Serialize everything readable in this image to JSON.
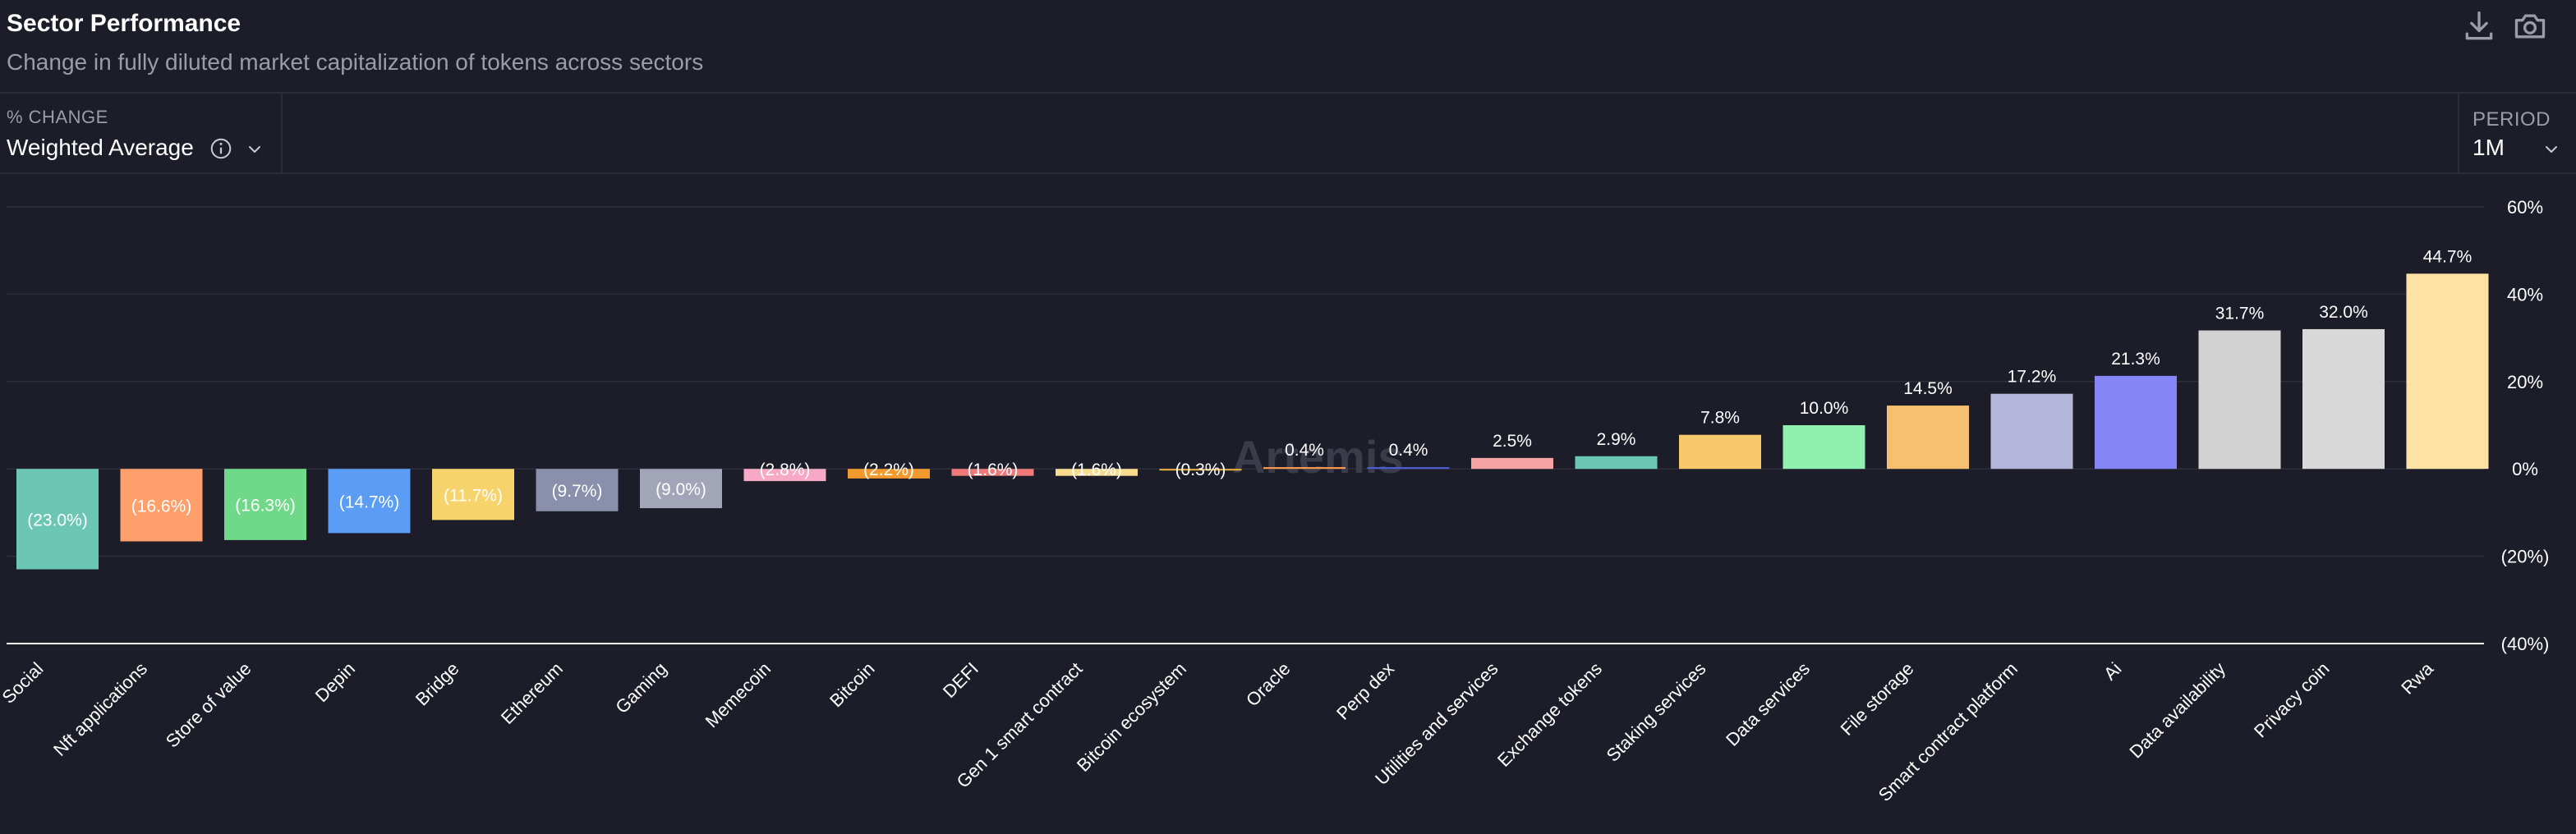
{
  "header": {
    "title": "Sector Performance",
    "subtitle": "Change in fully diluted market capitalization of tokens across sectors"
  },
  "controls": {
    "change_label": "% CHANGE",
    "change_value": "Weighted Average",
    "period_label": "PERIOD",
    "period_value": "1M"
  },
  "toolbar": {
    "download_icon": "download-icon",
    "screenshot_icon": "camera-icon"
  },
  "watermark": "Artemis",
  "chart_data": {
    "type": "bar",
    "categories": [
      "Social",
      "Nft applications",
      "Store of value",
      "Depin",
      "Bridge",
      "Ethereum",
      "Gaming",
      "Memecoin",
      "Bitcoin",
      "DEFI",
      "Gen 1 smart contract",
      "Bitcoin ecosystem",
      "Oracle",
      "Perp dex",
      "Utilities and services",
      "Exchange tokens",
      "Staking services",
      "Data services",
      "File storage",
      "Smart contract platform",
      "Ai",
      "Data availability",
      "Privacy coin",
      "Rwa"
    ],
    "values": [
      -23.0,
      -16.6,
      -16.3,
      -14.7,
      -11.7,
      -9.7,
      -9.0,
      -2.8,
      -2.2,
      -1.6,
      -1.6,
      -0.3,
      0.4,
      0.4,
      2.5,
      2.9,
      7.8,
      10.0,
      14.5,
      17.2,
      21.3,
      31.7,
      32.0,
      44.7
    ],
    "data_labels": [
      "(23.0%)",
      "(16.6%)",
      "(16.3%)",
      "(14.7%)",
      "(11.7%)",
      "(9.7%)",
      "(9.0%)",
      "(2.8%)",
      "(2.2%)",
      "(1.6%)",
      "(1.6%)",
      "(0.3%)",
      "0.4%",
      "0.4%",
      "2.5%",
      "2.9%",
      "7.8%",
      "10.0%",
      "14.5%",
      "17.2%",
      "21.3%",
      "31.7%",
      "32.0%",
      "44.7%"
    ],
    "colors": [
      "#6cc6b4",
      "#ff9f6b",
      "#6fd989",
      "#5b9cf5",
      "#f6d36b",
      "#8a8fab",
      "#a2a5b8",
      "#f7a8c4",
      "#f29a2e",
      "#f07a7a",
      "#f6dc8c",
      "#f2b33d",
      "#ff9a4d",
      "#4b5fd9",
      "#f5a3a3",
      "#6cc6b4",
      "#f8c96a",
      "#8ff0b0",
      "#f6c070",
      "#b4b6d9",
      "#8585f5",
      "#d3d3d3",
      "#d8d8d8",
      "#fde2a6"
    ],
    "y_ticks": [
      60,
      40,
      20,
      0,
      -20,
      -40
    ],
    "y_tick_labels": [
      "60%",
      "40%",
      "20%",
      "0%",
      "(20%)",
      "(40%)"
    ],
    "ylim": [
      -40,
      60
    ],
    "grid": true,
    "y_axis_position": "right"
  }
}
